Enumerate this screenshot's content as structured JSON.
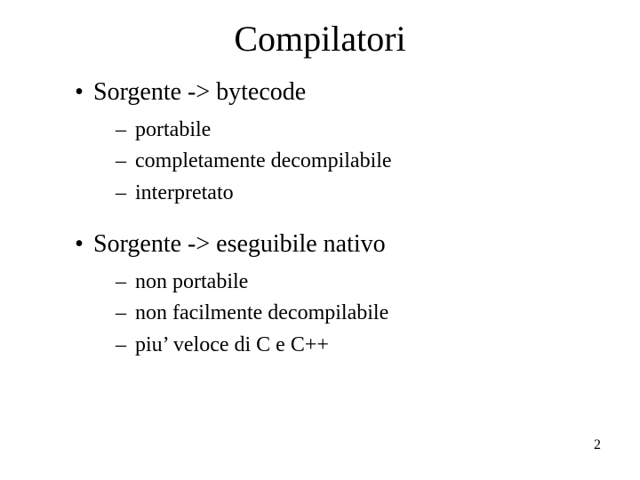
{
  "title": "Compilatori",
  "items": [
    {
      "label": "Sorgente -> bytecode",
      "children": [
        {
          "label": "portabile"
        },
        {
          "label": "completamente decompilabile"
        },
        {
          "label": "interpretato"
        }
      ]
    },
    {
      "label": "Sorgente -> eseguibile nativo",
      "children": [
        {
          "label": "non portabile"
        },
        {
          "label": "non facilmente decompilabile"
        },
        {
          "label": "piu’ veloce di C e C++"
        }
      ]
    }
  ],
  "page_number": "2",
  "colors": {
    "background": "#ffffff",
    "text": "#000000"
  },
  "fonts": {
    "family": "Times New Roman",
    "title_size_pt": 40,
    "level1_size_pt": 28,
    "level2_size_pt": 24,
    "page_num_size_pt": 16
  },
  "glyphs": {
    "bullet": "•",
    "dash": "–"
  }
}
